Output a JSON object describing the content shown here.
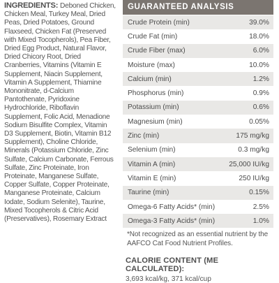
{
  "ingredients": {
    "title": "INGREDIENTS:",
    "text": "Deboned Chicken, Chicken Meal, Turkey Meal, Dried Peas, Dried Potatoes, Ground Flaxseed, Chicken Fat (Preserved with Mixed Tocopherols), Pea Fiber, Dried Egg Product, Natural Flavor, Dried Chicory Root, Dried Cranberries, Vitamins (Vitamin E Supplement, Niacin Supplement, Vitamin A Supplement, Thiamine Mononitrate, d-Calcium Pantothenate, Pyridoxine Hydrochloride, Riboflavin Supplement, Folic Acid, Menadione Sodium Bisulfite Complex, Vitamin D3 Supplement, Biotin, Vitamin B12 Supplement), Choline Chloride, Minerals (Potassium Chloride, Zinc Sulfate, Calcium Carbonate, Ferrous Sulfate, Zinc Proteinate, Iron Proteinate, Manganese Sulfate, Copper Sulfate, Copper Proteinate, Manganese Proteinate, Calcium Iodate, Sodium Selenite), Taurine, Mixed Tocopherols & Citric Acid (Preservatives), Rosemary Extract"
  },
  "analysis": {
    "title": "GUARANTEED ANALYSIS",
    "rows": [
      {
        "label": "Crude Protein (min)",
        "value": "39.0%"
      },
      {
        "label": "Crude Fat (min)",
        "value": "18.0%"
      },
      {
        "label": "Crude Fiber (max)",
        "value": "6.0%"
      },
      {
        "label": "Moisture (max)",
        "value": "10.0%"
      },
      {
        "label": "Calcium (min)",
        "value": "1.2%"
      },
      {
        "label": "Phosphorus (min)",
        "value": "0.9%"
      },
      {
        "label": "Potassium (min)",
        "value": "0.6%"
      },
      {
        "label": "Magnesium (min)",
        "value": "0.05%"
      },
      {
        "label": "Zinc (min)",
        "value": "175 mg/kg"
      },
      {
        "label": "Selenium (min)",
        "value": "0.3 mg/kg"
      },
      {
        "label": "Vitamin A (min)",
        "value": "25,000 IU/kg"
      },
      {
        "label": "Vitamin E (min)",
        "value": "250 IU/kg"
      },
      {
        "label": "Taurine (min)",
        "value": "0.15%"
      },
      {
        "label": "Omega-6 Fatty Acids* (min)",
        "value": "2.5%"
      },
      {
        "label": "Omega-3 Fatty Acids* (min)",
        "value": "1.0%"
      }
    ],
    "row_shade_color": "#e9e8e6",
    "header_color": "#7b7570"
  },
  "footnote": "*Not recognized as an essential nutrient by the AAFCO Cat Food Nutrient Profiles.",
  "calorie": {
    "title": "CALORIE CONTENT (ME CALCULATED):",
    "value": "3,693 kcal/kg, 371 kcal/cup"
  }
}
